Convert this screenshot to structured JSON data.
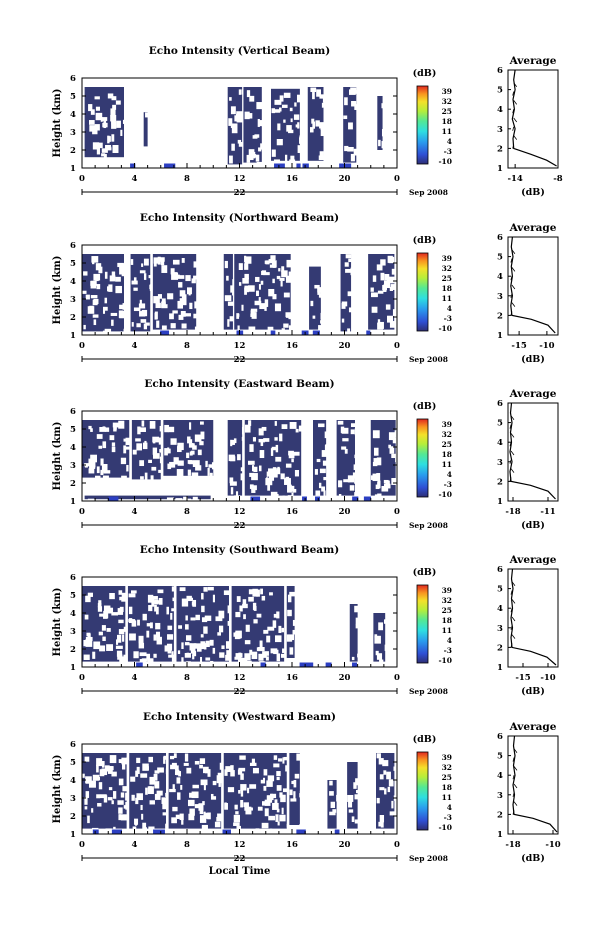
{
  "chart_data": [
    {
      "type": "heatmap",
      "title": "Echo Intensity (Vertical Beam)",
      "ylabel": "Height (km)",
      "yticks": [
        "1",
        "2",
        "3",
        "4",
        "5",
        "6"
      ],
      "ylim": [
        1,
        6
      ],
      "xticks": [
        "0",
        "4",
        "8",
        "12",
        "16",
        "20",
        "0"
      ],
      "xlim": [
        0,
        24
      ],
      "date_label": "22",
      "date_suffix": "Sep 2008",
      "colorbar": {
        "label": "(dB)",
        "ticks": [
          "39",
          "32",
          "25",
          "18",
          "11",
          "4",
          "-3",
          "-10"
        ],
        "range": [
          -10,
          39
        ]
      },
      "data_blocks": [
        [
          0.2,
          3.2,
          1.6,
          5.5
        ],
        [
          4.7,
          5.0,
          2.2,
          4.1
        ],
        [
          11.1,
          12.2,
          1.2,
          5.5
        ],
        [
          12.3,
          13.7,
          1.3,
          5.5
        ],
        [
          14.4,
          16.6,
          1.4,
          5.4
        ],
        [
          17.2,
          18.4,
          1.4,
          5.5
        ],
        [
          19.9,
          20.9,
          1.3,
          5.5
        ],
        [
          22.5,
          22.9,
          2.0,
          5.0
        ]
      ],
      "average": {
        "title": "Average",
        "xlabel": "(dB)",
        "xticks": [
          "-14",
          "-8"
        ],
        "xlim": [
          -15,
          -8
        ],
        "profile": [
          [
            -8.2,
            1.1
          ],
          [
            -9.6,
            1.4
          ],
          [
            -11.8,
            1.7
          ],
          [
            -14.2,
            2.0
          ],
          [
            -14.3,
            2.5
          ],
          [
            -14.0,
            3.0
          ],
          [
            -14.4,
            3.5
          ],
          [
            -14.1,
            4.0
          ],
          [
            -14.3,
            4.5
          ],
          [
            -14.0,
            5.0
          ],
          [
            -14.2,
            5.5
          ],
          [
            -14.0,
            6.0
          ]
        ]
      }
    },
    {
      "type": "heatmap",
      "title": "Echo Intensity (Northward Beam)",
      "ylabel": "Height (km)",
      "yticks": [
        "1",
        "2",
        "3",
        "4",
        "5",
        "6"
      ],
      "ylim": [
        1,
        6
      ],
      "xticks": [
        "0",
        "4",
        "8",
        "12",
        "16",
        "20",
        "0"
      ],
      "xlim": [
        0,
        24
      ],
      "date_label": "22",
      "date_suffix": "Sep 2008",
      "colorbar": {
        "label": "(dB)",
        "ticks": [
          "39",
          "32",
          "25",
          "18",
          "11",
          "4",
          "-3",
          "-10"
        ],
        "range": [
          -10,
          39
        ]
      },
      "data_blocks": [
        [
          0.0,
          3.2,
          1.2,
          5.5
        ],
        [
          3.7,
          5.2,
          1.2,
          5.5
        ],
        [
          5.4,
          8.7,
          1.3,
          5.5
        ],
        [
          10.8,
          11.5,
          1.3,
          5.5
        ],
        [
          11.6,
          15.9,
          1.3,
          5.5
        ],
        [
          17.3,
          18.2,
          1.3,
          4.8
        ],
        [
          19.7,
          20.5,
          1.2,
          5.5
        ],
        [
          21.8,
          23.8,
          1.3,
          5.5
        ]
      ],
      "average": {
        "title": "Average",
        "xlabel": "(dB)",
        "xticks": [
          "-15",
          "-10"
        ],
        "xlim": [
          -17,
          -8
        ],
        "profile": [
          [
            -8.5,
            1.1
          ],
          [
            -9.8,
            1.5
          ],
          [
            -12.8,
            1.8
          ],
          [
            -16.3,
            2.0
          ],
          [
            -16.5,
            2.5
          ],
          [
            -16.2,
            3.0
          ],
          [
            -16.5,
            3.5
          ],
          [
            -16.2,
            4.0
          ],
          [
            -16.4,
            4.5
          ],
          [
            -16.1,
            5.0
          ],
          [
            -16.4,
            5.5
          ],
          [
            -16.2,
            6.0
          ]
        ]
      }
    },
    {
      "type": "heatmap",
      "title": "Echo Intensity (Eastward Beam)",
      "ylabel": "Height (km)",
      "yticks": [
        "1",
        "2",
        "3",
        "4",
        "5",
        "6"
      ],
      "ylim": [
        1,
        6
      ],
      "xticks": [
        "0",
        "4",
        "8",
        "12",
        "16",
        "20",
        "0"
      ],
      "xlim": [
        0,
        24
      ],
      "date_label": "22",
      "date_suffix": "Sep 2008",
      "colorbar": {
        "label": "(dB)",
        "ticks": [
          "39",
          "32",
          "25",
          "18",
          "11",
          "4",
          "-3",
          "-10"
        ],
        "range": [
          -10,
          39
        ]
      },
      "data_blocks": [
        [
          0.0,
          3.6,
          2.3,
          5.5
        ],
        [
          3.8,
          6.0,
          2.2,
          5.5
        ],
        [
          6.2,
          10.0,
          2.4,
          5.5
        ],
        [
          11.1,
          12.2,
          1.3,
          5.5
        ],
        [
          12.4,
          16.7,
          1.3,
          5.5
        ],
        [
          17.6,
          18.6,
          1.3,
          5.5
        ],
        [
          19.4,
          20.8,
          1.3,
          5.5
        ],
        [
          22.0,
          23.9,
          1.3,
          5.5
        ],
        [
          0.2,
          9.8,
          1.1,
          1.3
        ]
      ],
      "average": {
        "title": "Average",
        "xlabel": "(dB)",
        "xticks": [
          "-18",
          "-11"
        ],
        "xlim": [
          -19,
          -9
        ],
        "profile": [
          [
            -9.5,
            1.1
          ],
          [
            -11.0,
            1.5
          ],
          [
            -14.5,
            1.8
          ],
          [
            -18.4,
            2.0
          ],
          [
            -18.6,
            2.5
          ],
          [
            -18.2,
            3.0
          ],
          [
            -18.6,
            3.5
          ],
          [
            -18.3,
            4.0
          ],
          [
            -18.5,
            4.5
          ],
          [
            -18.2,
            5.0
          ],
          [
            -18.5,
            5.5
          ],
          [
            -18.3,
            6.0
          ]
        ]
      }
    },
    {
      "type": "heatmap",
      "title": "Echo Intensity (Southward Beam)",
      "ylabel": "Height (km)",
      "yticks": [
        "1",
        "2",
        "3",
        "4",
        "5",
        "6"
      ],
      "ylim": [
        1,
        6
      ],
      "xticks": [
        "0",
        "4",
        "8",
        "12",
        "16",
        "20",
        "0"
      ],
      "xlim": [
        0,
        24
      ],
      "date_label": "22",
      "date_suffix": "Sep 2008",
      "colorbar": {
        "label": "(dB)",
        "ticks": [
          "39",
          "32",
          "25",
          "18",
          "11",
          "4",
          "-3",
          "-10"
        ],
        "range": [
          -10,
          39
        ]
      },
      "data_blocks": [
        [
          0.0,
          3.3,
          1.3,
          5.5
        ],
        [
          3.5,
          7.0,
          1.3,
          5.5
        ],
        [
          7.2,
          11.2,
          1.3,
          5.5
        ],
        [
          11.4,
          15.4,
          1.3,
          5.5
        ],
        [
          15.6,
          16.2,
          1.5,
          5.5
        ],
        [
          20.4,
          21.0,
          1.3,
          4.5
        ],
        [
          22.2,
          23.1,
          1.3,
          4.0
        ]
      ],
      "average": {
        "title": "Average",
        "xlabel": "(dB)",
        "xticks": [
          "-15",
          "-10"
        ],
        "xlim": [
          -18,
          -8
        ],
        "profile": [
          [
            -8.4,
            1.1
          ],
          [
            -10.2,
            1.5
          ],
          [
            -13.5,
            1.8
          ],
          [
            -17.2,
            2.0
          ],
          [
            -17.4,
            2.5
          ],
          [
            -17.1,
            3.0
          ],
          [
            -17.4,
            3.5
          ],
          [
            -17.1,
            4.0
          ],
          [
            -17.3,
            4.5
          ],
          [
            -17.0,
            5.0
          ],
          [
            -17.3,
            5.5
          ],
          [
            -17.1,
            6.0
          ]
        ]
      }
    },
    {
      "type": "heatmap",
      "title": "Echo Intensity (Westward Beam)",
      "ylabel": "Height (km)",
      "yticks": [
        "1",
        "2",
        "3",
        "4",
        "5",
        "6"
      ],
      "ylim": [
        1,
        6
      ],
      "xticks": [
        "0",
        "4",
        "8",
        "12",
        "16",
        "20",
        "0"
      ],
      "xlim": [
        0,
        24
      ],
      "date_label": "22",
      "date_suffix": "Sep 2008",
      "xlabel": "Local Time",
      "colorbar": {
        "label": "(dB)",
        "ticks": [
          "39",
          "32",
          "25",
          "18",
          "11",
          "4",
          "-3",
          "-10"
        ],
        "range": [
          -10,
          39
        ]
      },
      "data_blocks": [
        [
          0.0,
          3.4,
          1.3,
          5.5
        ],
        [
          3.6,
          6.4,
          1.3,
          5.5
        ],
        [
          6.6,
          10.6,
          1.3,
          5.5
        ],
        [
          10.8,
          15.6,
          1.3,
          5.5
        ],
        [
          15.8,
          16.6,
          1.5,
          5.5
        ],
        [
          18.7,
          19.4,
          1.3,
          4.0
        ],
        [
          20.2,
          21.0,
          1.3,
          5.0
        ],
        [
          22.4,
          23.8,
          1.3,
          5.5
        ]
      ],
      "average": {
        "title": "Average",
        "xlabel": "(dB)",
        "xticks": [
          "-18",
          "-10"
        ],
        "xlim": [
          -19,
          -9
        ],
        "profile": [
          [
            -9.2,
            1.1
          ],
          [
            -10.6,
            1.5
          ],
          [
            -14.0,
            1.8
          ],
          [
            -17.8,
            2.0
          ],
          [
            -18.0,
            2.5
          ],
          [
            -17.7,
            3.0
          ],
          [
            -18.0,
            3.5
          ],
          [
            -17.6,
            4.0
          ],
          [
            -17.9,
            4.5
          ],
          [
            -17.6,
            5.0
          ],
          [
            -17.9,
            5.5
          ],
          [
            -17.7,
            6.0
          ]
        ]
      }
    }
  ],
  "colors": {
    "echo_fill": "#343a73",
    "strong_echo": "#2c3fc2",
    "colorbar_stops": [
      "#30307a",
      "#2f50d8",
      "#2aa0ee",
      "#2ee0e0",
      "#56e896",
      "#b8ee3a",
      "#f4e22a",
      "#f89420",
      "#e02820"
    ]
  }
}
